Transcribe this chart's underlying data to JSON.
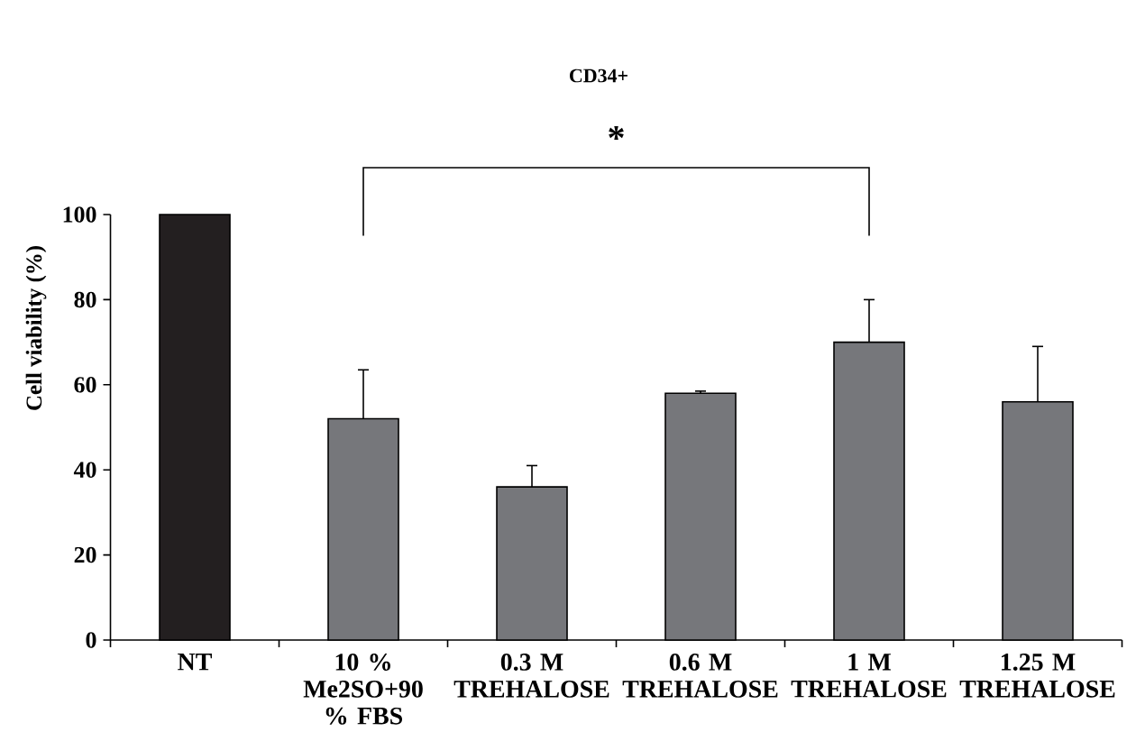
{
  "chart_data": {
    "type": "bar",
    "title": "CD34+",
    "ylabel": "Cell viability (%)",
    "categories": [
      "NT",
      "10 % Me2SO+90 % FBS",
      "0.3 M TREHALOSE",
      "0.6 M TREHALOSE",
      "1 M TREHALOSE",
      "1.25 M TREHALOSE"
    ],
    "values": [
      100,
      52,
      36,
      58,
      70,
      56
    ],
    "errors": [
      null,
      [
        52,
        63.5
      ],
      [
        36,
        41
      ],
      [
        58,
        58.5
      ],
      [
        70,
        80
      ],
      [
        56,
        69
      ]
    ],
    "colors": [
      "#231f20",
      "#76777b",
      "#76777b",
      "#76777b",
      "#76777b",
      "#76777b"
    ],
    "ylim": [
      0,
      100
    ],
    "yticks": [
      0,
      20,
      40,
      60,
      80,
      100
    ],
    "annotations": [
      "*"
    ]
  }
}
